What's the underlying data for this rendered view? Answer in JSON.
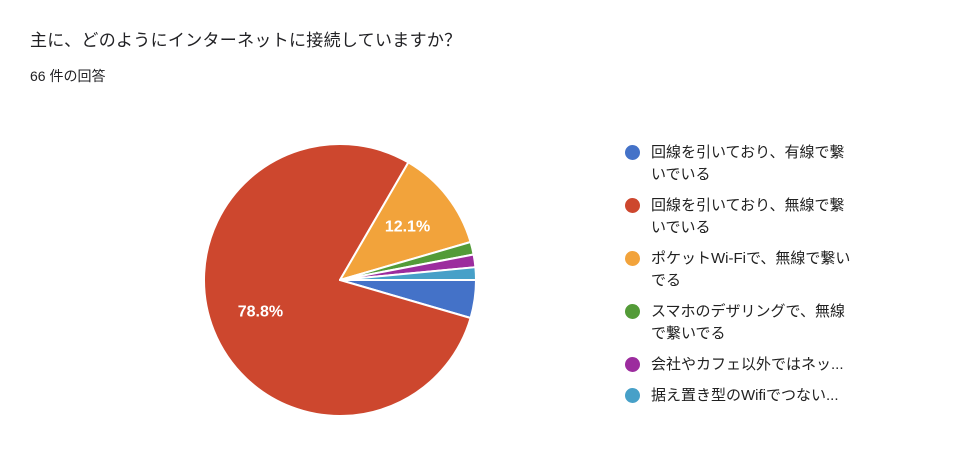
{
  "header": {
    "title": "主に、どのようにインターネットに接続していますか？",
    "subtitle": "66 件の回答"
  },
  "chart_data": {
    "type": "pie",
    "title": "主に、どのようにインターネットに接続していますか？",
    "subtitle": "66 件の回答",
    "total_responses": 66,
    "start_angle_deg": 90,
    "direction": "clockwise",
    "legend_position": "right",
    "grid": false,
    "slices": [
      {
        "label": "回線を引いており、有線で繋いでいる",
        "legend_lines": [
          "回線を引いており、有線で繋",
          "いでいる"
        ],
        "percent": 4.5,
        "color": "#4472C8",
        "data_label": ""
      },
      {
        "label": "回線を引いており、無線で繋いでいる",
        "legend_lines": [
          "回線を引いており、無線で繋",
          "いでいる"
        ],
        "percent": 78.8,
        "color": "#CD472E",
        "data_label": "78.8%"
      },
      {
        "label": "ポケットWi-Fiで、無線で繋いでる",
        "legend_lines": [
          "ポケットWi-Fiで、無線で繋い",
          "でる"
        ],
        "percent": 12.1,
        "color": "#F2A33B",
        "data_label": "12.1%"
      },
      {
        "label": "スマホのデザリングで、無線で繋いでる",
        "legend_lines": [
          "スマホのデザリングで、無線",
          "で繋いでる"
        ],
        "percent": 1.5,
        "color": "#539B38",
        "data_label": ""
      },
      {
        "label": "会社やカフェ以外ではネッ...",
        "legend_lines": [
          "会社やカフェ以外ではネッ..."
        ],
        "percent": 1.5,
        "color": "#9C2C9E",
        "data_label": ""
      },
      {
        "label": "据え置き型のWifiでつない...",
        "legend_lines": [
          "据え置き型のWifiでつない..."
        ],
        "percent": 1.5,
        "color": "#47A0C8",
        "data_label": ""
      }
    ],
    "data_label_color": "#ffffff",
    "text_color": "#212121"
  }
}
